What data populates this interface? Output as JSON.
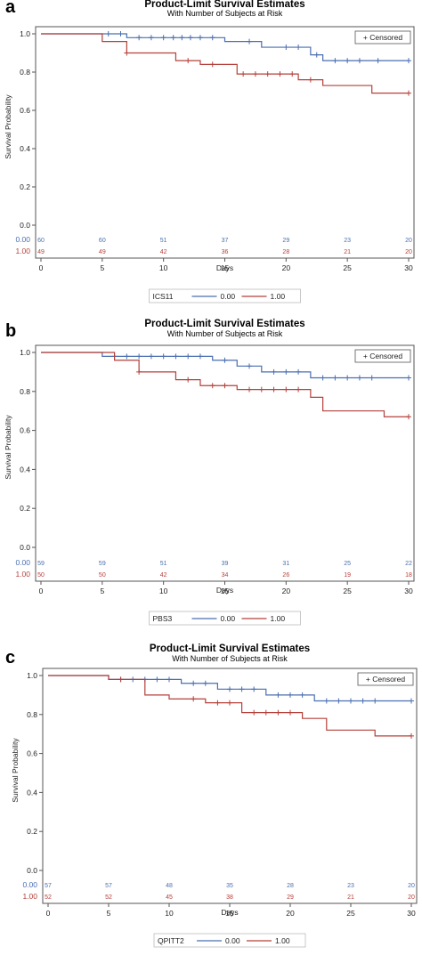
{
  "panels": [
    {
      "panel_label": "a",
      "title": "Product-Limit Survival Estimates",
      "subtitle": "With Number of Subjects at Risk",
      "censored_legend": "+ Censored",
      "ylabel": "Survival Probability",
      "xlabel": "Days",
      "legend_title": "ICS11",
      "legend_entries": [
        "0.00",
        "1.00"
      ],
      "risk_labels": [
        "0.00",
        "1.00"
      ],
      "risk_counts": [
        [
          60,
          60,
          51,
          37,
          29,
          23,
          20
        ],
        [
          49,
          49,
          42,
          36,
          28,
          21,
          20
        ]
      ]
    },
    {
      "panel_label": "b",
      "title": "Product-Limit Survival Estimates",
      "subtitle": "With Number of Subjects at Risk",
      "censored_legend": "+ Censored",
      "ylabel": "Survival Probability",
      "xlabel": "Days",
      "legend_title": "PBS3",
      "legend_entries": [
        "0.00",
        "1.00"
      ],
      "risk_labels": [
        "0.00",
        "1.00"
      ],
      "risk_counts": [
        [
          59,
          59,
          51,
          39,
          31,
          25,
          22
        ],
        [
          50,
          50,
          42,
          34,
          26,
          19,
          18
        ]
      ]
    },
    {
      "panel_label": "c",
      "title": "Product-Limit Survival Estimates",
      "subtitle": "With Number of Subjects at Risk",
      "censored_legend": "+ Censored",
      "ylabel": "Survival Probability",
      "xlabel": "Days",
      "legend_title": "QPITT2",
      "legend_entries": [
        "0.00",
        "1.00"
      ],
      "risk_labels": [
        "0.00",
        "1.00"
      ],
      "risk_counts": [
        [
          57,
          57,
          48,
          35,
          28,
          23,
          20
        ],
        [
          52,
          52,
          45,
          38,
          29,
          21,
          20
        ]
      ]
    }
  ],
  "colors": {
    "group_0": "#4a6fb0",
    "group_1": "#b5403a",
    "axis": "#555555",
    "text": "#222222"
  },
  "chart_data": [
    {
      "type": "line",
      "title": "Product-Limit Survival Estimates",
      "subtitle": "With Number of Subjects at Risk",
      "xlabel": "Days",
      "ylabel": "Survival Probability",
      "xlim": [
        0,
        30
      ],
      "ylim": [
        0,
        1
      ],
      "x_ticks": [
        0,
        5,
        10,
        15,
        20,
        25,
        30
      ],
      "y_ticks": [
        0.0,
        0.2,
        0.4,
        0.6,
        0.8,
        1.0
      ],
      "legend_position": "top-right",
      "grid": false,
      "series": [
        {
          "name": "0.00",
          "step_x": [
            0,
            5,
            7,
            15,
            18,
            22,
            23,
            30
          ],
          "step_y": [
            1.0,
            1.0,
            0.98,
            0.96,
            0.93,
            0.89,
            0.86,
            0.86
          ],
          "censor_x": [
            5.5,
            6.5,
            8,
            9,
            10,
            10.8,
            11.5,
            12.2,
            13,
            14,
            17,
            20,
            21,
            22.5,
            24,
            25,
            26,
            27.5,
            30
          ],
          "censor_y": [
            1.0,
            1.0,
            0.98,
            0.98,
            0.98,
            0.98,
            0.98,
            0.98,
            0.98,
            0.98,
            0.96,
            0.93,
            0.93,
            0.89,
            0.86,
            0.86,
            0.86,
            0.86,
            0.86
          ]
        },
        {
          "name": "1.00",
          "step_x": [
            0,
            5,
            7,
            11,
            13,
            16,
            21,
            23,
            27,
            30
          ],
          "step_y": [
            1.0,
            0.96,
            0.9,
            0.86,
            0.84,
            0.79,
            0.76,
            0.73,
            0.69,
            0.69
          ],
          "censor_x": [
            7,
            12,
            14,
            16.5,
            17.5,
            18.5,
            19.5,
            20.5,
            22,
            30
          ],
          "censor_y": [
            0.9,
            0.86,
            0.84,
            0.79,
            0.79,
            0.79,
            0.79,
            0.79,
            0.76,
            0.69
          ]
        }
      ]
    },
    {
      "type": "line",
      "title": "Product-Limit Survival Estimates",
      "subtitle": "With Number of Subjects at Risk",
      "xlabel": "Days",
      "ylabel": "Survival Probability",
      "xlim": [
        0,
        30
      ],
      "ylim": [
        0,
        1
      ],
      "x_ticks": [
        0,
        5,
        10,
        15,
        20,
        25,
        30
      ],
      "y_ticks": [
        0.0,
        0.2,
        0.4,
        0.6,
        0.8,
        1.0
      ],
      "legend_position": "top-right",
      "grid": false,
      "series": [
        {
          "name": "0.00",
          "step_x": [
            0,
            5,
            14,
            16,
            18,
            22,
            30
          ],
          "step_y": [
            1.0,
            0.98,
            0.96,
            0.93,
            0.9,
            0.87,
            0.87
          ],
          "censor_x": [
            6,
            7,
            8,
            9,
            10,
            11,
            12,
            13,
            15,
            17,
            19,
            20,
            21,
            23,
            24,
            25,
            26,
            27,
            30
          ],
          "censor_y": [
            0.98,
            0.98,
            0.98,
            0.98,
            0.98,
            0.98,
            0.98,
            0.98,
            0.96,
            0.93,
            0.9,
            0.9,
            0.9,
            0.87,
            0.87,
            0.87,
            0.87,
            0.87,
            0.87
          ]
        },
        {
          "name": "1.00",
          "step_x": [
            0,
            6,
            8,
            11,
            13,
            16,
            22,
            23,
            28,
            30
          ],
          "step_y": [
            1.0,
            0.96,
            0.9,
            0.86,
            0.83,
            0.81,
            0.77,
            0.7,
            0.67,
            0.67
          ],
          "censor_x": [
            8,
            12,
            14,
            15,
            17,
            18,
            19,
            20,
            21,
            30
          ],
          "censor_y": [
            0.9,
            0.86,
            0.83,
            0.83,
            0.81,
            0.81,
            0.81,
            0.81,
            0.81,
            0.67
          ]
        }
      ]
    },
    {
      "type": "line",
      "title": "Product-Limit Survival Estimates",
      "subtitle": "With Number of Subjects at Risk",
      "xlabel": "Days",
      "ylabel": "Survival Probability",
      "xlim": [
        0,
        30
      ],
      "ylim": [
        0,
        1
      ],
      "x_ticks": [
        0,
        5,
        10,
        15,
        20,
        25,
        30
      ],
      "y_ticks": [
        0.0,
        0.2,
        0.4,
        0.6,
        0.8,
        1.0
      ],
      "legend_position": "top-right",
      "grid": false,
      "series": [
        {
          "name": "0.00",
          "step_x": [
            0,
            5,
            11,
            14,
            18,
            22,
            30
          ],
          "step_y": [
            1.0,
            0.98,
            0.96,
            0.93,
            0.9,
            0.87,
            0.87
          ],
          "censor_x": [
            6,
            7,
            8,
            9,
            10,
            12,
            13,
            15,
            16,
            17,
            19,
            20,
            21,
            23,
            24,
            25,
            26,
            27,
            30
          ],
          "censor_y": [
            0.98,
            0.98,
            0.98,
            0.98,
            0.98,
            0.96,
            0.96,
            0.93,
            0.93,
            0.93,
            0.9,
            0.9,
            0.9,
            0.87,
            0.87,
            0.87,
            0.87,
            0.87,
            0.87
          ]
        },
        {
          "name": "1.00",
          "step_x": [
            0,
            5,
            8,
            10,
            13,
            16,
            21,
            23,
            27,
            30
          ],
          "step_y": [
            1.0,
            0.98,
            0.9,
            0.88,
            0.86,
            0.81,
            0.78,
            0.72,
            0.69,
            0.69
          ],
          "censor_x": [
            6,
            12,
            14,
            15,
            17,
            18,
            19,
            20,
            30
          ],
          "censor_y": [
            0.98,
            0.88,
            0.86,
            0.86,
            0.81,
            0.81,
            0.81,
            0.81,
            0.69
          ]
        }
      ]
    }
  ]
}
